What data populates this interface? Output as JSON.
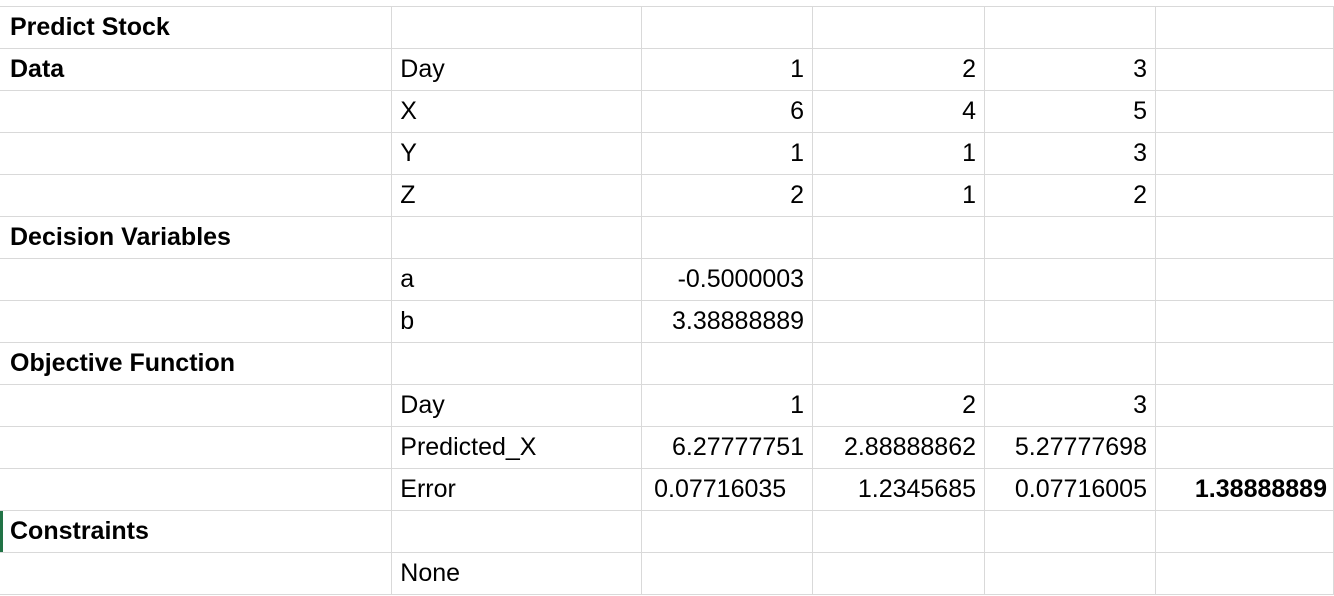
{
  "rows": [
    {
      "a": "Predict Stock",
      "b": "",
      "c": "",
      "d": "",
      "e": "",
      "f": ""
    },
    {
      "a": "Data",
      "b": "Day",
      "c": "1",
      "d": "2",
      "e": "3",
      "f": ""
    },
    {
      "a": "",
      "b": "X",
      "c": "6",
      "d": "4",
      "e": "5",
      "f": ""
    },
    {
      "a": "",
      "b": "Y",
      "c": "1",
      "d": "1",
      "e": "3",
      "f": ""
    },
    {
      "a": "",
      "b": "Z",
      "c": "2",
      "d": "1",
      "e": "2",
      "f": ""
    },
    {
      "a": "Decision Variables",
      "b": "",
      "c": "",
      "d": "",
      "e": "",
      "f": ""
    },
    {
      "a": "",
      "b": "a",
      "c": "-0.5000003",
      "d": "",
      "e": "",
      "f": ""
    },
    {
      "a": "",
      "b": "b",
      "c": "3.38888889",
      "d": "",
      "e": "",
      "f": ""
    },
    {
      "a": "Objective Function",
      "b": "",
      "c": "",
      "d": "",
      "e": "",
      "f": ""
    },
    {
      "a": "",
      "b": "Day",
      "c": "1",
      "d": "2",
      "e": "3",
      "f": ""
    },
    {
      "a": "",
      "b": "Predicted_X",
      "c": "6.27777751",
      "d": "2.88888862",
      "e": "5.27777698",
      "f": ""
    },
    {
      "a": "",
      "b": "Error",
      "c": "0.07716035",
      "d": "1.2345685",
      "e": "0.07716005",
      "f": "1.38888889"
    },
    {
      "a": "Constraints",
      "b": "",
      "c": "",
      "d": "",
      "e": "",
      "f": ""
    },
    {
      "a": "",
      "b": "None",
      "c": "",
      "d": "",
      "e": "",
      "f": ""
    }
  ]
}
